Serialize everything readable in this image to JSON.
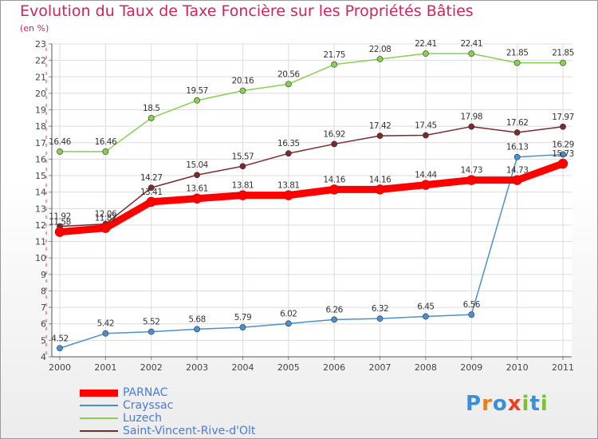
{
  "title": "Evolution du Taux de Taxe Foncière sur les Propriétés Bâties",
  "subtitle": "(en %)",
  "logo_text": "Proxiti",
  "chart_data": {
    "type": "line",
    "title": "Evolution du Taux de Taxe Foncière sur les Propriétés Bâties",
    "ylabel": "(en %)",
    "xlabel": "",
    "categories": [
      "2000",
      "2001",
      "2002",
      "2003",
      "2004",
      "2005",
      "2006",
      "2007",
      "2008",
      "2009",
      "2010",
      "2011"
    ],
    "ylim": [
      4,
      23
    ],
    "yticks": [
      "4",
      "5",
      "6",
      "7",
      "8",
      "9",
      "10",
      "11",
      "12",
      "13",
      "14",
      "15",
      "16",
      "17",
      "18",
      "19",
      "20",
      "21",
      "22",
      "23"
    ],
    "grid": true,
    "legend_position": "bottom-left",
    "series": [
      {
        "name": "PARNAC",
        "color": "#ff0000",
        "values": [
          11.58,
          11.82,
          13.41,
          13.61,
          13.81,
          13.81,
          14.16,
          14.16,
          14.44,
          14.73,
          14.73,
          15.73
        ],
        "labels": [
          "11.58",
          "11.82",
          "13.41",
          "13.61",
          "13.81",
          "13.81",
          "14.16",
          "14.16",
          "14.44",
          "14.73",
          "14.73",
          "15.73"
        ]
      },
      {
        "name": "Crayssac",
        "color": "#4a90d0",
        "values": [
          4.52,
          5.42,
          5.52,
          5.68,
          5.79,
          6.02,
          6.26,
          6.32,
          6.45,
          6.56,
          16.13,
          16.29
        ],
        "labels": [
          "4.52",
          "5.42",
          "5.52",
          "5.68",
          "5.79",
          "6.02",
          "6.26",
          "6.32",
          "6.45",
          "6.56",
          "16.13",
          "16.29"
        ]
      },
      {
        "name": "Luzech",
        "color": "#88d050",
        "values": [
          16.46,
          16.46,
          18.5,
          19.57,
          20.16,
          20.56,
          21.75,
          22.08,
          22.41,
          22.41,
          21.85,
          21.85
        ],
        "labels": [
          "16.46",
          "16.46",
          "18.5",
          "19.57",
          "20.16",
          "20.56",
          "21.75",
          "22.08",
          "22.41",
          "22.41",
          "21.85",
          "21.85"
        ]
      },
      {
        "name": "Saint-Vincent-Rive-d'Olt",
        "color": "#7a2a2a",
        "values": [
          11.92,
          12.06,
          14.27,
          15.04,
          15.57,
          16.35,
          16.92,
          17.42,
          17.45,
          17.98,
          17.62,
          17.97
        ],
        "labels": [
          "11.92",
          "12.06",
          "14.27",
          "15.04",
          "15.57",
          "16.35",
          "16.92",
          "17.42",
          "17.45",
          "17.98",
          "17.62",
          "17.97"
        ]
      }
    ]
  }
}
